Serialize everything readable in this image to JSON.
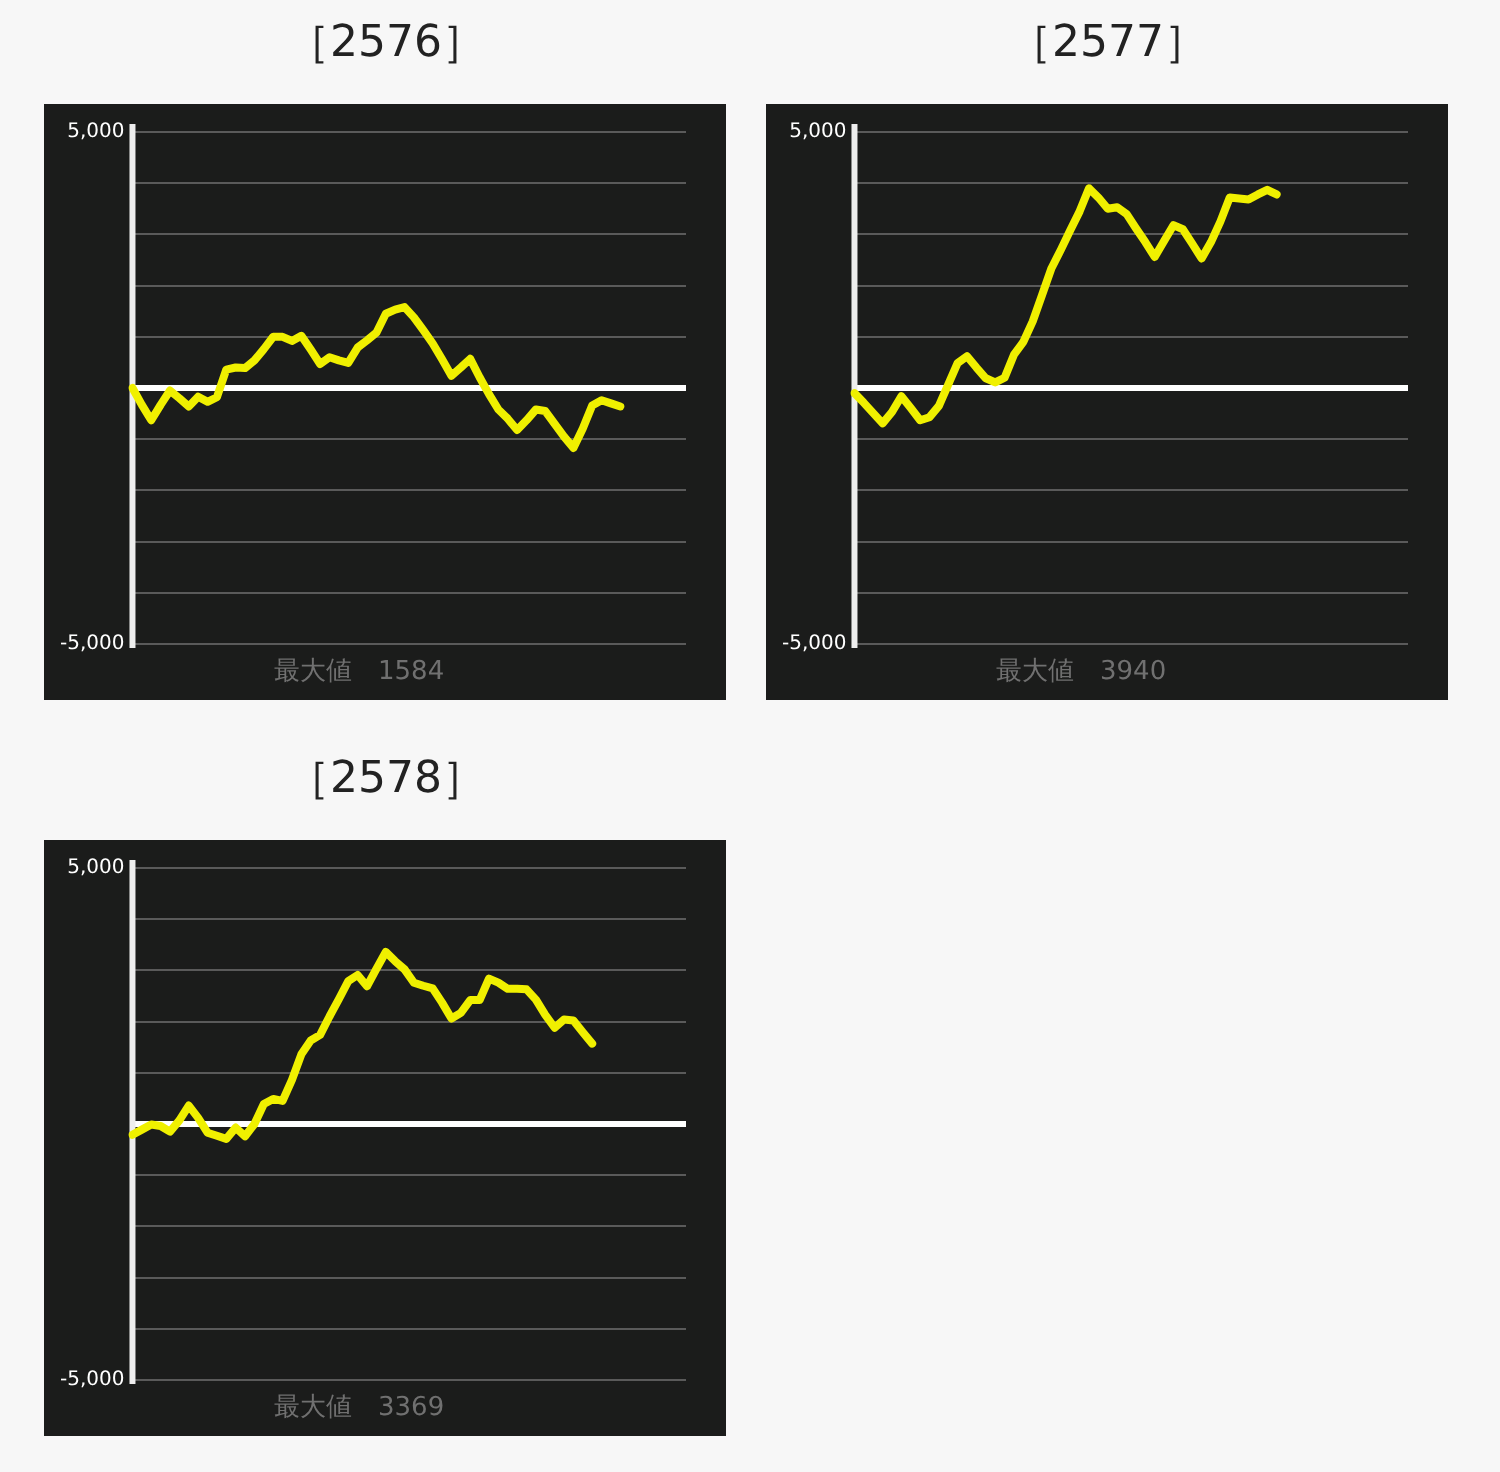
{
  "chart_data": [
    {
      "type": "line",
      "title": "［2576］",
      "categories": [
        null,
        null,
        null,
        null,
        null,
        null,
        null,
        null,
        null,
        null,
        null,
        null,
        null,
        null,
        null,
        null,
        null,
        null,
        null,
        null,
        null,
        null,
        null,
        null,
        null,
        null,
        null,
        null,
        null,
        null,
        null,
        null,
        null,
        null,
        null,
        null,
        null,
        null,
        null,
        null,
        null,
        null,
        null,
        null,
        null,
        null,
        null,
        null,
        null,
        null,
        null,
        null,
        null,
        null,
        null,
        null,
        null,
        null,
        null,
        null
      ],
      "series": [
        {
          "color": "#f0f000",
          "values": [
            0,
            -330,
            -630,
            -330,
            -50,
            -200,
            -360,
            -170,
            -270,
            -180,
            360,
            400,
            390,
            540,
            760,
            1000,
            1000,
            920,
            1020,
            750,
            470,
            600,
            540,
            490,
            790,
            930,
            1080,
            1450,
            1530,
            1580,
            1380,
            1130,
            870,
            560,
            240,
            400,
            570,
            210,
            -120,
            -420,
            -600,
            -820,
            -630,
            -420,
            -450,
            -700,
            -950,
            -1170,
            -790,
            -340,
            -240,
            -300,
            -360,
            null,
            null,
            null,
            null,
            null,
            null,
            null
          ]
        }
      ],
      "ylim": [
        -5000,
        5000
      ],
      "yticks": [
        {
          "value": -5000,
          "label": "-5,000"
        },
        {
          "value": -4000,
          "label": null
        },
        {
          "value": -3000,
          "label": null
        },
        {
          "value": -2000,
          "label": null
        },
        {
          "value": -1000,
          "label": null
        },
        {
          "value": 0,
          "label": null
        },
        {
          "value": 1000,
          "label": null
        },
        {
          "value": 2000,
          "label": null
        },
        {
          "value": 3000,
          "label": null
        },
        {
          "value": 4000,
          "label": null
        },
        {
          "value": 5000,
          "label": "5,000"
        }
      ],
      "grid": "y",
      "legend": false,
      "tick_labels": "y",
      "marker": "none",
      "ref_lines": [
        {
          "axis": "y",
          "value": 0,
          "color": "#ffffff"
        }
      ],
      "annotations": [
        "最大値　1584"
      ]
    },
    {
      "type": "line",
      "title": "［2577］",
      "categories": [
        null,
        null,
        null,
        null,
        null,
        null,
        null,
        null,
        null,
        null,
        null,
        null,
        null,
        null,
        null,
        null,
        null,
        null,
        null,
        null,
        null,
        null,
        null,
        null,
        null,
        null,
        null,
        null,
        null,
        null,
        null,
        null,
        null,
        null,
        null,
        null,
        null,
        null,
        null,
        null,
        null,
        null,
        null,
        null,
        null,
        null,
        null,
        null,
        null,
        null,
        null,
        null,
        null,
        null,
        null,
        null,
        null,
        null,
        null,
        null
      ],
      "series": [
        {
          "color": "#f0f000",
          "values": [
            -100,
            -290,
            -490,
            -690,
            -470,
            -160,
            -390,
            -630,
            -570,
            -350,
            70,
            490,
            620,
            400,
            190,
            110,
            200,
            650,
            900,
            1300,
            1820,
            2340,
            2700,
            3080,
            3450,
            3900,
            3720,
            3500,
            3530,
            3400,
            3120,
            2850,
            2560,
            2870,
            3180,
            3100,
            2820,
            2530,
            2850,
            3250,
            3720,
            3700,
            3680,
            3780,
            3870,
            3780,
            null,
            null,
            null,
            null,
            null,
            null,
            null,
            null,
            null,
            null,
            null,
            null,
            null,
            null
          ]
        }
      ],
      "ylim": [
        -5000,
        5000
      ],
      "yticks": [
        {
          "value": -5000,
          "label": "-5,000"
        },
        {
          "value": -4000,
          "label": null
        },
        {
          "value": -3000,
          "label": null
        },
        {
          "value": -2000,
          "label": null
        },
        {
          "value": -1000,
          "label": null
        },
        {
          "value": 0,
          "label": null
        },
        {
          "value": 1000,
          "label": null
        },
        {
          "value": 2000,
          "label": null
        },
        {
          "value": 3000,
          "label": null
        },
        {
          "value": 4000,
          "label": null
        },
        {
          "value": 5000,
          "label": "5,000"
        }
      ],
      "grid": "y",
      "legend": false,
      "tick_labels": "y",
      "marker": "none",
      "ref_lines": [
        {
          "axis": "y",
          "value": 0,
          "color": "#ffffff"
        }
      ],
      "annotations": [
        "最大値　3940"
      ]
    },
    {
      "type": "line",
      "title": "［2578］",
      "categories": [
        null,
        null,
        null,
        null,
        null,
        null,
        null,
        null,
        null,
        null,
        null,
        null,
        null,
        null,
        null,
        null,
        null,
        null,
        null,
        null,
        null,
        null,
        null,
        null,
        null,
        null,
        null,
        null,
        null,
        null,
        null,
        null,
        null,
        null,
        null,
        null,
        null,
        null,
        null,
        null,
        null,
        null,
        null,
        null,
        null,
        null,
        null,
        null,
        null,
        null,
        null,
        null,
        null,
        null,
        null,
        null,
        null,
        null,
        null,
        null
      ],
      "series": [
        {
          "color": "#f0f000",
          "values": [
            -210,
            -110,
            -10,
            -40,
            -150,
            70,
            360,
            120,
            -170,
            -230,
            -290,
            -70,
            -240,
            0,
            390,
            490,
            450,
            860,
            1360,
            1630,
            1740,
            2100,
            2440,
            2790,
            2910,
            2690,
            3030,
            3360,
            3180,
            3020,
            2760,
            2700,
            2650,
            2370,
            2060,
            2170,
            2420,
            2420,
            2840,
            2760,
            2640,
            2640,
            2630,
            2430,
            2130,
            1880,
            2040,
            2020,
            1790,
            1570,
            null,
            null,
            null,
            null,
            null,
            null,
            null,
            null,
            null,
            null
          ]
        }
      ],
      "ylim": [
        -5000,
        5000
      ],
      "yticks": [
        {
          "value": -5000,
          "label": "-5,000"
        },
        {
          "value": -4000,
          "label": null
        },
        {
          "value": -3000,
          "label": null
        },
        {
          "value": -2000,
          "label": null
        },
        {
          "value": -1000,
          "label": null
        },
        {
          "value": 0,
          "label": null
        },
        {
          "value": 1000,
          "label": null
        },
        {
          "value": 2000,
          "label": null
        },
        {
          "value": 3000,
          "label": null
        },
        {
          "value": 4000,
          "label": null
        },
        {
          "value": 5000,
          "label": "5,000"
        }
      ],
      "grid": "y",
      "legend": false,
      "tick_labels": "y",
      "marker": "none",
      "ref_lines": [
        {
          "axis": "y",
          "value": 0,
          "color": "#ffffff"
        }
      ],
      "annotations": [
        "最大値　3369"
      ]
    }
  ]
}
